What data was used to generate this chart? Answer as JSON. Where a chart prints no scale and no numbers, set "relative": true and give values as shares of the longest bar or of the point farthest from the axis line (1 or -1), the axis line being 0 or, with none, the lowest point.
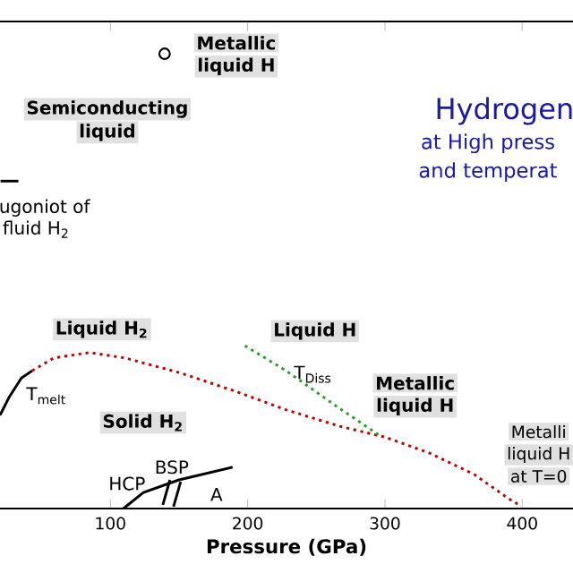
{
  "chart_data": {
    "type": "line",
    "relative": true,
    "xlabel": "Pressure (GPa)",
    "xlim": [
      19.6,
      437
    ],
    "xticks": [
      100,
      200,
      300,
      400
    ],
    "series": [
      {
        "color": "#000000",
        "line_style": "solid",
        "x": [
          19.6,
          26.1,
          35.2,
          43.0
        ],
        "values": [
          0.205,
          0.244,
          0.287,
          0.303
        ]
      },
      {
        "color": "#c00000",
        "line_style": "dotted",
        "x": [
          43.0,
          58.7,
          84.7,
          110.8,
          150,
          189,
          228,
          267,
          300,
          332.5,
          365,
          391,
          397.7
        ],
        "values": [
          0.303,
          0.331,
          0.343,
          0.331,
          0.299,
          0.26,
          0.217,
          0.181,
          0.157,
          0.122,
          0.075,
          0.02,
          0.008
        ]
      },
      {
        "color": "#2a9d2a",
        "line_style": "dotted",
        "x": [
          198,
          228,
          267,
          296
        ],
        "values": [
          0.358,
          0.303,
          0.22,
          0.161
        ]
      },
      {
        "color": "#000000",
        "line_style": "solid",
        "x": [
          109.5,
          124,
          150,
          189
        ],
        "values": [
          0,
          0.035,
          0.063,
          0.091
        ]
      },
      {
        "color": "#000000",
        "line_style": "solid",
        "x": [
          138.2,
          143.4
        ],
        "values": [
          0.008,
          0.063
        ]
      },
      {
        "color": "#000000",
        "line_style": "solid",
        "x": [
          146,
          151.2
        ],
        "values": [
          0.004,
          0.059
        ]
      },
      {
        "color": "#000000",
        "line_style": "solid",
        "x": [
          20,
          33
        ],
        "values": [
          0.72,
          0.72
        ]
      },
      {
        "type": "scatter",
        "marker": "circle",
        "color": "#000000",
        "x": [
          139.5
        ],
        "values": [
          1.0
        ]
      }
    ],
    "annotations": [
      "Metallic",
      "liquid H",
      "Semiconducting",
      "liquid",
      "ugoniot of",
      "fluid H$_{2}$",
      "Hydrogen",
      "at High press",
      "and temperat",
      "Liquid H$_{2}$",
      "Liquid H",
      "T$_{Diss}$",
      "T$_{melt}$",
      "Metallic",
      "liquid H",
      "Solid H$_{2}$",
      "Metalli",
      "liquid H",
      "at T=0",
      "HCP",
      "BSP",
      "A"
    ]
  }
}
